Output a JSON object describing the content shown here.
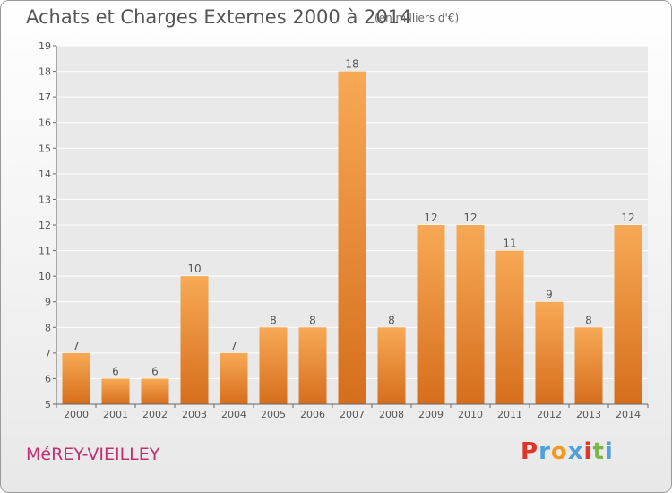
{
  "header": {
    "title": "Achats et Charges Externes 2000 à 2014",
    "subtitle": "(en milliers d'€)"
  },
  "footer": {
    "commune": "MéREY-VIEILLEY",
    "logo": "Proxiti"
  },
  "colors": {
    "bar_top": "#f7a955",
    "bar_bottom": "#d66e1c",
    "commune_text": "#c0306e",
    "logo_letters": [
      "#e0352b",
      "#4fa0dc",
      "#f39a1e",
      "#4fa0dc",
      "#e0352b",
      "#7ab648",
      "#4fa0dc"
    ]
  },
  "chart_data": {
    "type": "bar",
    "title": "Achats et Charges Externes 2000 à 2014",
    "subtitle": "(en milliers d'€)",
    "categories": [
      "2000",
      "2001",
      "2002",
      "2003",
      "2004",
      "2005",
      "2006",
      "2007",
      "2008",
      "2009",
      "2010",
      "2011",
      "2012",
      "2013",
      "2014"
    ],
    "values": [
      7,
      6,
      6,
      10,
      7,
      8,
      8,
      18,
      8,
      12,
      12,
      11,
      9,
      8,
      12
    ],
    "ylim": [
      5,
      19
    ],
    "yticks": [
      5,
      6,
      7,
      8,
      9,
      10,
      11,
      12,
      13,
      14,
      15,
      16,
      17,
      18,
      19
    ],
    "grid": true,
    "legend": "none",
    "data_labels": true
  }
}
